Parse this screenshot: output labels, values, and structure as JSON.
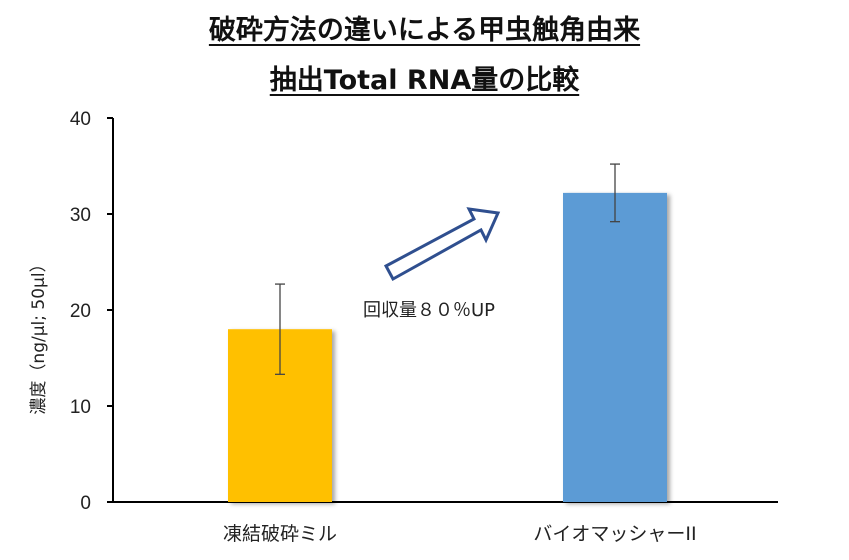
{
  "chart_data": {
    "type": "bar",
    "title_line1": "破砕方法の違いによる甲虫触角由来",
    "title_line2": "抽出Total RNA量の比較",
    "ylabel": "濃度（ng/μl; 50μl）",
    "ylim": [
      0,
      40
    ],
    "yticks": [
      "0",
      "10",
      "20",
      "30",
      "40"
    ],
    "yticks_values": [
      0,
      10,
      20,
      30,
      40
    ],
    "categories": [
      "凍結破砕ミル",
      "バイオマッシャーII"
    ],
    "values": [
      18,
      32.2
    ],
    "errors": [
      4.7,
      3.0
    ],
    "colors": [
      "#FFC000",
      "#5B9BD5"
    ],
    "grid": false,
    "annotation": "回収量８０％UP"
  }
}
